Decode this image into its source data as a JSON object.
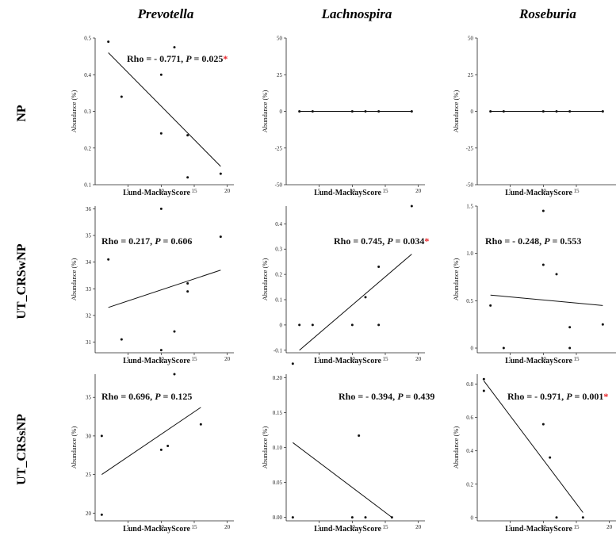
{
  "chart_data": [
    {
      "type": "scatter",
      "column": "Prevotella",
      "row": "NP",
      "xlabel": "Lund-MackayScore",
      "ylabel": "Abundance (%)",
      "xlim": [
        0,
        21
      ],
      "ylim": [
        0.1,
        0.5
      ],
      "xticks": [
        5,
        10,
        15,
        20
      ],
      "yticks": [
        0.1,
        0.2,
        0.3,
        0.4,
        0.5
      ],
      "ytick_labels": [
        "0.1",
        "0.2",
        "0.3",
        "0.4",
        "0.5"
      ],
      "points": [
        [
          2,
          0.49
        ],
        [
          4,
          0.34
        ],
        [
          10,
          0.24
        ],
        [
          10,
          0.4
        ],
        [
          12,
          0.475
        ],
        [
          14,
          0.12
        ],
        [
          14,
          0.235
        ],
        [
          19,
          0.13
        ]
      ],
      "fit": [
        [
          2,
          0.46
        ],
        [
          19,
          0.15
        ]
      ],
      "rho_text": "Rho = - 0.771,",
      "p_label": "P",
      "p_text": " = 0.025",
      "star": "*"
    },
    {
      "type": "scatter",
      "column": "Lachnospira",
      "row": "NP",
      "xlabel": "Lund-MackayScore",
      "ylabel": "Abundance (%)",
      "xlim": [
        0,
        21
      ],
      "ylim": [
        -50,
        50
      ],
      "xticks": [
        5,
        10,
        15,
        20
      ],
      "yticks": [
        -50,
        -25,
        0,
        25,
        50
      ],
      "ytick_labels": [
        "-50",
        "-25",
        "0",
        "25",
        "50"
      ],
      "points": [
        [
          2,
          0
        ],
        [
          4,
          0
        ],
        [
          10,
          0
        ],
        [
          12,
          0
        ],
        [
          14,
          0
        ],
        [
          19,
          0
        ]
      ],
      "fit": [
        [
          2,
          0
        ],
        [
          19,
          0
        ]
      ],
      "rho_text": "",
      "p_label": "",
      "p_text": "",
      "star": ""
    },
    {
      "type": "scatter",
      "column": "Roseburia",
      "row": "NP",
      "xlabel": "Lund-MackayScore",
      "ylabel": "Abundance (%)",
      "xlim": [
        0,
        21
      ],
      "ylim": [
        -50,
        50
      ],
      "xticks": [
        5,
        10,
        15
      ],
      "yticks": [
        -50,
        -25,
        0,
        25,
        50
      ],
      "ytick_labels": [
        "-50",
        "-25",
        "0",
        "25",
        "50"
      ],
      "points": [
        [
          2,
          0
        ],
        [
          4,
          0
        ],
        [
          10,
          0
        ],
        [
          12,
          0
        ],
        [
          14,
          0
        ],
        [
          19,
          0
        ]
      ],
      "fit": [
        [
          2,
          0
        ],
        [
          19,
          0
        ]
      ],
      "rho_text": "",
      "p_label": "",
      "p_text": "",
      "star": ""
    },
    {
      "type": "scatter",
      "column": "Prevotella",
      "row": "UT_CRSwNP",
      "xlabel": "Lund-MackayScore",
      "ylabel": "Abundance (%)",
      "xlim": [
        0,
        21
      ],
      "ylim": [
        30.6,
        36.1
      ],
      "xticks": [
        5,
        10,
        15,
        20
      ],
      "yticks": [
        31,
        32,
        33,
        34,
        35,
        36
      ],
      "ytick_labels": [
        "31",
        "32",
        "33",
        "34",
        "35",
        "36"
      ],
      "points": [
        [
          2,
          34.1
        ],
        [
          4,
          31.1
        ],
        [
          10,
          30.7
        ],
        [
          10,
          36
        ],
        [
          12,
          31.4
        ],
        [
          14,
          32.9
        ],
        [
          14,
          33.2
        ],
        [
          19,
          34.95
        ]
      ],
      "fit": [
        [
          2,
          32.3
        ],
        [
          19,
          33.7
        ]
      ],
      "rho_text": "Rho = 0.217,",
      "p_label": "P",
      "p_text": " = 0.606",
      "star": ""
    },
    {
      "type": "scatter",
      "column": "Lachnospira",
      "row": "UT_CRSwNP",
      "xlabel": "Lund-MackayScore",
      "ylabel": "Abundance (%)",
      "xlim": [
        0,
        21
      ],
      "ylim": [
        -0.11,
        0.47
      ],
      "xticks": [
        5,
        10,
        15,
        20
      ],
      "yticks": [
        -0.1,
        0,
        0.1,
        0.2,
        0.3,
        0.4
      ],
      "ytick_labels": [
        "-0.1",
        "0",
        "0.1",
        "0.2",
        "0.3",
        "0.4"
      ],
      "points": [
        [
          2,
          0
        ],
        [
          4,
          0
        ],
        [
          10,
          0
        ],
        [
          12,
          0.11
        ],
        [
          14,
          0.23
        ],
        [
          14,
          0
        ],
        [
          19,
          0.47
        ]
      ],
      "fit": [
        [
          2,
          -0.1
        ],
        [
          19,
          0.28
        ]
      ],
      "rho_text": "Rho = 0.745,",
      "p_label": "P",
      "p_text": " = 0.034",
      "star": "*"
    },
    {
      "type": "scatter",
      "column": "Roseburia",
      "row": "UT_CRSwNP",
      "xlabel": "Lund-MackayScore",
      "ylabel": "Abundance (%)",
      "xlim": [
        0,
        21
      ],
      "ylim": [
        -0.05,
        1.5
      ],
      "xticks": [
        5,
        10,
        15
      ],
      "yticks": [
        0,
        0.5,
        1.0,
        1.5
      ],
      "ytick_labels": [
        "0",
        "0.5",
        "1.0",
        "1.5"
      ],
      "points": [
        [
          2,
          0.45
        ],
        [
          4,
          0
        ],
        [
          10,
          1.45
        ],
        [
          10,
          0.88
        ],
        [
          12,
          0.78
        ],
        [
          14,
          0.22
        ],
        [
          14,
          0
        ],
        [
          19,
          0.25
        ]
      ],
      "fit": [
        [
          2,
          0.56
        ],
        [
          19,
          0.45
        ]
      ],
      "rho_text": "Rho = - 0.248,",
      "p_label": "P",
      "p_text": " = 0.553",
      "star": ""
    },
    {
      "type": "scatter",
      "column": "Prevotella",
      "row": "UT_CRSsNP",
      "xlabel": "Lund-MackayScore",
      "ylabel": "Abundance (%)",
      "xlim": [
        0,
        21
      ],
      "ylim": [
        19,
        38
      ],
      "xticks": [
        5,
        10,
        15,
        20
      ],
      "yticks": [
        20,
        25,
        30,
        35
      ],
      "ytick_labels": [
        "20",
        "25",
        "30",
        "35"
      ],
      "points": [
        [
          1,
          30
        ],
        [
          1,
          19.8
        ],
        [
          10,
          28.2
        ],
        [
          11,
          28.7
        ],
        [
          12,
          38
        ],
        [
          16,
          31.5
        ]
      ],
      "fit": [
        [
          1,
          25
        ],
        [
          16,
          33.7
        ]
      ],
      "rho_text": "Rho = 0.696,",
      "p_label": "P",
      "p_text": " = 0.125",
      "star": ""
    },
    {
      "type": "scatter",
      "column": "Lachnospira",
      "row": "UT_CRSsNP",
      "xlabel": "Lund-MackayScore",
      "ylabel": "Abundance (%)",
      "xlim": [
        0,
        21
      ],
      "ylim": [
        -0.005,
        0.205
      ],
      "xticks": [
        5,
        10,
        15,
        20
      ],
      "yticks": [
        0,
        0.05,
        0.1,
        0.15,
        0.2
      ],
      "ytick_labels": [
        "0.00",
        "0.05",
        "0.10",
        "0.15",
        "0.20"
      ],
      "points": [
        [
          1,
          0.22
        ],
        [
          1,
          0
        ],
        [
          10,
          0
        ],
        [
          11,
          0.117
        ],
        [
          12,
          0
        ],
        [
          16,
          0
        ]
      ],
      "fit": [
        [
          1,
          0.107
        ],
        [
          16,
          0
        ]
      ],
      "rho_text": "Rho = - 0.394,",
      "p_label": "P",
      "p_text": " = 0.439",
      "star": ""
    },
    {
      "type": "scatter",
      "column": "Roseburia",
      "row": "UT_CRSsNP",
      "xlabel": "Lund-MackayScore",
      "ylabel": "Abundance (%)",
      "xlim": [
        0,
        21
      ],
      "ylim": [
        -0.02,
        0.86
      ],
      "xticks": [
        5,
        10,
        15,
        20
      ],
      "yticks": [
        0,
        0.2,
        0.4,
        0.6,
        0.8
      ],
      "ytick_labels": [
        "0",
        "0.2",
        "0.4",
        "0.6",
        "0.8"
      ],
      "points": [
        [
          1,
          0.83
        ],
        [
          1,
          0.76
        ],
        [
          10,
          0.56
        ],
        [
          11,
          0.36
        ],
        [
          12,
          0
        ],
        [
          16,
          0
        ]
      ],
      "fit": [
        [
          1,
          0.82
        ],
        [
          16,
          0.03
        ]
      ],
      "rho_text": "Rho = - 0.971,",
      "p_label": "P",
      "p_text": " = 0.001",
      "star": "*"
    }
  ],
  "columns": [
    "Prevotella",
    "Lachnospira",
    "Roseburia"
  ],
  "rows": [
    "NP",
    "UT_CRSwNP",
    "UT_CRSsNP"
  ],
  "colors": {
    "star": "#e8262b",
    "line": "#111111",
    "point": "#111111"
  }
}
